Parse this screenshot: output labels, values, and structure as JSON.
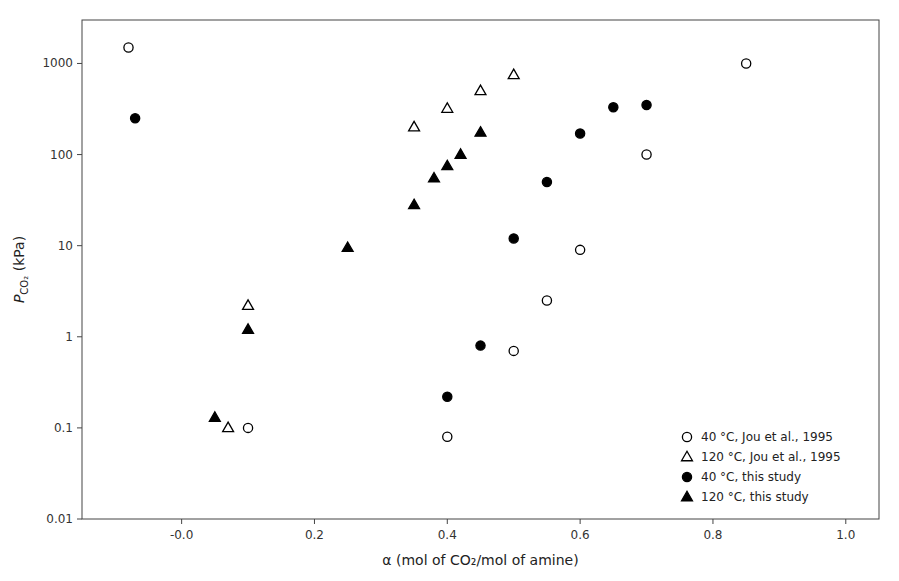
{
  "chart_data": {
    "type": "scatter",
    "x_label": "α (mol of CO₂/mol of amine)",
    "y_label": "PCO₂ (kPa)",
    "log": "y",
    "grid": false,
    "legend": "lower right",
    "xlim": [
      -0.15,
      1.05
    ],
    "ylim": [
      0.01,
      3000
    ],
    "xticks": [
      {
        "value": 0,
        "label": "-0.0"
      },
      0.2,
      0.4,
      0.6,
      0.8,
      {
        "value": 1,
        "label": "1.0"
      }
    ],
    "yticks": [
      0.01,
      0.1,
      1,
      10,
      100,
      1000
    ],
    "series": [
      {
        "name": "40 °C, Jou et al., 1995",
        "color": "#000000",
        "marker": "circle-open",
        "x": [
          -0.08,
          0.1,
          0.4,
          0.5,
          0.55,
          0.6,
          0.7,
          0.85
        ],
        "values": [
          1500,
          0.1,
          0.08,
          0.7,
          2.5,
          9.0,
          100,
          1000
        ]
      },
      {
        "name": "120 °C, Jou et al., 1995",
        "color": "#000000",
        "marker": "triangle-open",
        "x": [
          0.07,
          0.1,
          0.35,
          0.4,
          0.45,
          0.5
        ],
        "values": [
          0.1,
          2.2,
          200,
          320,
          500,
          750
        ]
      },
      {
        "name": "40 °C, this study",
        "color": "#000000",
        "marker": "circle",
        "x": [
          -0.07,
          0.4,
          0.45,
          0.5,
          0.55,
          0.6,
          0.65,
          0.7
        ],
        "values": [
          250,
          0.22,
          0.8,
          12,
          50,
          170,
          330,
          350
        ]
      },
      {
        "name": "120 °C, this study",
        "color": "#000000",
        "marker": "triangle",
        "x": [
          0.05,
          0.1,
          0.25,
          0.35,
          0.38,
          0.4,
          0.42,
          0.45
        ],
        "values": [
          0.13,
          1.2,
          9.5,
          28,
          55,
          75,
          100,
          175
        ]
      }
    ]
  }
}
